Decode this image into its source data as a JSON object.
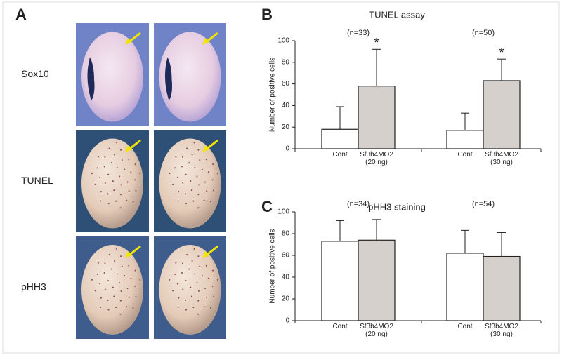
{
  "photo_panel": {
    "label": "A",
    "rows": [
      "Sox10",
      "TUNEL",
      "pHH3"
    ]
  },
  "chart_data": [
    {
      "type": "bar",
      "panel_label": "B",
      "title": "TUNEL assay",
      "y_label": "Number of positive cells",
      "categories": [
        "Cont",
        "Sf3b4MO2 (20 ng)",
        "Cont",
        "Sf3b4MO2 (30 ng)"
      ],
      "values": [
        18,
        58,
        17,
        63
      ],
      "errors": [
        21,
        34,
        16,
        20
      ],
      "colors": [
        "#ffffff",
        "#d5d0cc",
        "#ffffff",
        "#d5d0cc"
      ],
      "group_labels": [
        "(n=33)",
        "(n=50)"
      ],
      "value_annotations": [
        null,
        "*",
        null,
        "*"
      ],
      "ylim": [
        0,
        100
      ],
      "yticks": [
        0,
        20,
        40,
        60,
        80,
        100
      ]
    },
    {
      "type": "bar",
      "panel_label": "C",
      "title": "pHH3 staining",
      "y_label": "Number of positive cells",
      "categories": [
        "Cont",
        "Sf3b4MO2 (20 ng)",
        "Cont",
        "Sf3b4MO2 (30 ng)"
      ],
      "values": [
        73,
        74,
        62,
        59
      ],
      "errors": [
        19,
        19,
        21,
        22
      ],
      "colors": [
        "#ffffff",
        "#d5d0cc",
        "#ffffff",
        "#d5d0cc"
      ],
      "group_labels": [
        "(n=34)",
        "(n=54)"
      ],
      "ylim": [
        0,
        100
      ],
      "yticks": [
        0,
        20,
        40,
        60,
        80,
        100
      ]
    }
  ]
}
